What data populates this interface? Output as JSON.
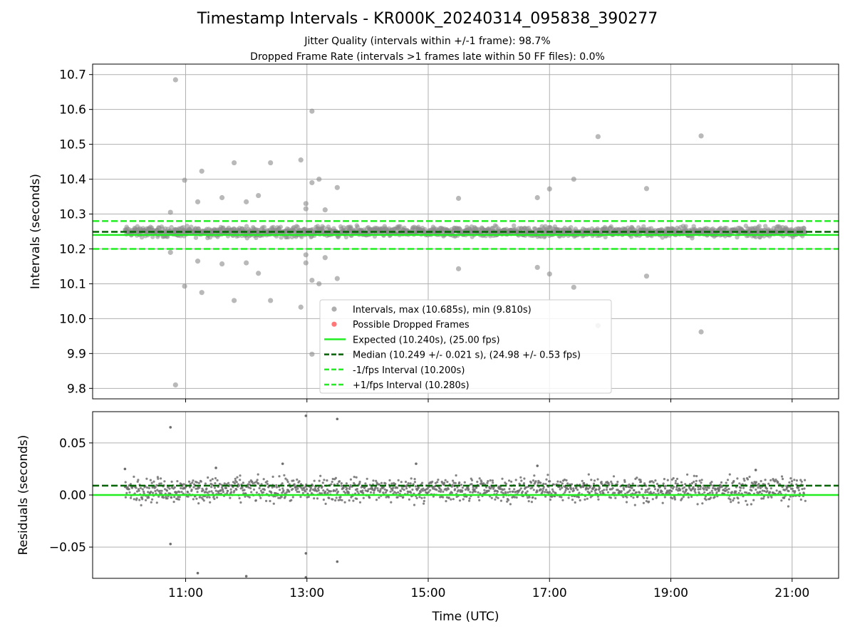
{
  "title": "Timestamp Intervals - KR000K_20240314_095838_390277",
  "subtitle_jitter": "Jitter Quality (intervals within +/-1 frame): 98.7%",
  "subtitle_dropped": "Dropped Frame Rate (intervals >1 frames late within 50 FF files): 0.0%",
  "colors": {
    "intervals": "#808080",
    "dropped": "#ff4d4d",
    "expected": "#22ee22",
    "median": "#006400",
    "bounds": "#22ee22",
    "grid": "#b0b0b0"
  },
  "chart_data": [
    {
      "type": "scatter",
      "ylabel": "Intervals (seconds)",
      "xlim": [
        "09:28",
        "21:46"
      ],
      "ylim": [
        9.77,
        10.73
      ],
      "yticks": [
        9.8,
        9.9,
        10.0,
        10.1,
        10.2,
        10.3,
        10.4,
        10.5,
        10.6,
        10.7
      ],
      "ytick_labels": [
        "9.8",
        "9.9",
        "10.0",
        "10.1",
        "10.2",
        "10.3",
        "10.4",
        "10.5",
        "10.6",
        "10.7"
      ],
      "grid": true,
      "legend_position": "lower-center",
      "dense_band": {
        "x_start": "10:00",
        "x_end": "21:13",
        "y_min": 10.228,
        "y_max": 10.27,
        "center": 10.249
      },
      "outliers": [
        {
          "x": "10:50",
          "y": 10.685
        },
        {
          "x": "10:50",
          "y": 9.81
        },
        {
          "x": "10:45",
          "y": 10.305
        },
        {
          "x": "10:45",
          "y": 10.19
        },
        {
          "x": "10:59",
          "y": 10.397
        },
        {
          "x": "10:59",
          "y": 10.093
        },
        {
          "x": "11:12",
          "y": 10.335
        },
        {
          "x": "11:12",
          "y": 10.165
        },
        {
          "x": "11:16",
          "y": 10.423
        },
        {
          "x": "11:16",
          "y": 10.075
        },
        {
          "x": "11:36",
          "y": 10.347
        },
        {
          "x": "11:36",
          "y": 10.157
        },
        {
          "x": "11:48",
          "y": 10.447
        },
        {
          "x": "11:48",
          "y": 10.052
        },
        {
          "x": "12:00",
          "y": 10.335
        },
        {
          "x": "12:00",
          "y": 10.16
        },
        {
          "x": "12:12",
          "y": 10.353
        },
        {
          "x": "12:12",
          "y": 10.13
        },
        {
          "x": "12:24",
          "y": 10.447
        },
        {
          "x": "12:24",
          "y": 10.052
        },
        {
          "x": "12:54",
          "y": 10.455
        },
        {
          "x": "12:54",
          "y": 10.033
        },
        {
          "x": "12:59",
          "y": 10.33
        },
        {
          "x": "12:59",
          "y": 10.315
        },
        {
          "x": "12:59",
          "y": 10.183
        },
        {
          "x": "12:59",
          "y": 10.16
        },
        {
          "x": "13:05",
          "y": 10.595
        },
        {
          "x": "13:05",
          "y": 9.898
        },
        {
          "x": "13:05",
          "y": 10.39
        },
        {
          "x": "13:05",
          "y": 10.11
        },
        {
          "x": "13:12",
          "y": 10.4
        },
        {
          "x": "13:12",
          "y": 10.1
        },
        {
          "x": "13:18",
          "y": 10.312
        },
        {
          "x": "13:18",
          "y": 10.175
        },
        {
          "x": "13:30",
          "y": 10.376
        },
        {
          "x": "13:30",
          "y": 10.115
        },
        {
          "x": "15:30",
          "y": 10.345
        },
        {
          "x": "15:30",
          "y": 10.143
        },
        {
          "x": "16:48",
          "y": 10.347
        },
        {
          "x": "16:48",
          "y": 10.147
        },
        {
          "x": "17:00",
          "y": 10.372
        },
        {
          "x": "17:00",
          "y": 10.128
        },
        {
          "x": "17:24",
          "y": 10.4
        },
        {
          "x": "17:24",
          "y": 10.09
        },
        {
          "x": "17:48",
          "y": 10.522
        },
        {
          "x": "17:48",
          "y": 9.98
        },
        {
          "x": "18:36",
          "y": 10.373
        },
        {
          "x": "18:36",
          "y": 10.122
        },
        {
          "x": "19:30",
          "y": 10.524
        },
        {
          "x": "19:30",
          "y": 9.962
        }
      ],
      "reference_lines": [
        {
          "name": "Expected",
          "y": 10.24,
          "style": "solid"
        },
        {
          "name": "Median",
          "y": 10.249,
          "style": "dashed"
        },
        {
          "name": "-1/fps",
          "y": 10.2,
          "style": "dashed"
        },
        {
          "name": "+1/fps",
          "y": 10.28,
          "style": "dashed"
        }
      ],
      "legend": [
        {
          "label": "Intervals, max (10.685s), min (9.810s)",
          "kind": "marker",
          "color": "#9a9a9a"
        },
        {
          "label": "Possible Dropped Frames",
          "kind": "marker",
          "color": "#ff5555"
        },
        {
          "label": "Expected (10.240s), (25.00 fps)",
          "kind": "solid",
          "color": "#22ee22"
        },
        {
          "label": "Median (10.249 +/- 0.021 s), (24.98 +/- 0.53 fps)",
          "kind": "dashed",
          "color": "#006400"
        },
        {
          "label": "-1/fps Interval (10.200s)",
          "kind": "dashed",
          "color": "#22ee22"
        },
        {
          "label": "+1/fps Interval (10.280s)",
          "kind": "dashed",
          "color": "#22ee22"
        }
      ]
    },
    {
      "type": "scatter",
      "xlabel": "Time (UTC)",
      "ylabel": "Residuals (seconds)",
      "xlim": [
        "09:28",
        "21:46"
      ],
      "xticks": [
        "11:00",
        "13:00",
        "15:00",
        "17:00",
        "19:00",
        "21:00"
      ],
      "ylim": [
        -0.08,
        0.08
      ],
      "yticks": [
        -0.05,
        0.0,
        0.05
      ],
      "ytick_labels": [
        "−0.05",
        "0.00",
        "0.05"
      ],
      "grid": true,
      "dense_band": {
        "x_start": "10:00",
        "x_end": "21:13",
        "y_min": -0.012,
        "y_max": 0.022,
        "center": 0.009
      },
      "outliers": [
        {
          "x": "10:45",
          "y": 0.065
        },
        {
          "x": "10:45",
          "y": -0.047
        },
        {
          "x": "11:12",
          "y": -0.075
        },
        {
          "x": "12:00",
          "y": -0.078
        },
        {
          "x": "12:59",
          "y": 0.076
        },
        {
          "x": "12:59",
          "y": -0.056
        },
        {
          "x": "12:59",
          "y": -0.079
        },
        {
          "x": "13:30",
          "y": 0.073
        },
        {
          "x": "13:30",
          "y": -0.064
        },
        {
          "x": "10:00",
          "y": 0.025
        },
        {
          "x": "11:30",
          "y": 0.026
        },
        {
          "x": "12:36",
          "y": 0.03
        },
        {
          "x": "14:48",
          "y": 0.03
        },
        {
          "x": "16:48",
          "y": 0.028
        },
        {
          "x": "20:24",
          "y": 0.024
        }
      ],
      "reference_lines": [
        {
          "name": "Expected",
          "y": 0.0,
          "style": "solid"
        },
        {
          "name": "Median",
          "y": 0.009,
          "style": "dashed"
        }
      ]
    }
  ]
}
